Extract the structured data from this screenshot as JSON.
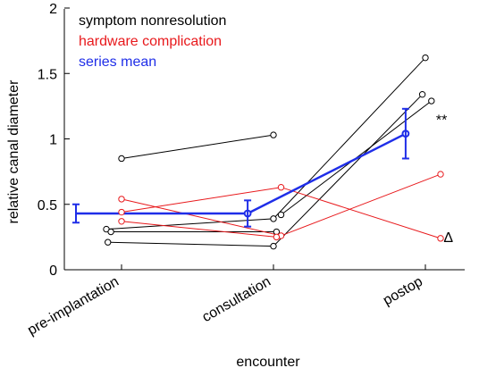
{
  "chart_data": {
    "type": "line",
    "xlabel": "encounter",
    "ylabel": "relative canal diameter",
    "categories": [
      "pre-implantation",
      "consultation",
      "postop"
    ],
    "ylim": [
      0,
      2
    ],
    "yticks": [
      0,
      0.5,
      1,
      1.5,
      2
    ],
    "ytick_labels": [
      "0",
      "0.5",
      "1",
      "1.5",
      "2"
    ],
    "grid": false,
    "legend_position": "top-left",
    "legend": [
      {
        "label": "symptom nonresolution",
        "color": "#000000"
      },
      {
        "label": "hardware complication",
        "color": "#e8191c"
      },
      {
        "label": "series mean",
        "color": "#1f2ee8"
      }
    ],
    "series": [
      {
        "group": "symptom nonresolution",
        "color": "#000000",
        "points": [
          [
            0,
            0.85
          ],
          [
            1,
            1.03
          ]
        ]
      },
      {
        "group": "symptom nonresolution",
        "color": "#000000",
        "points": [
          [
            -0.1,
            0.31
          ],
          [
            1,
            0.39
          ],
          [
            2,
            1.62
          ]
        ]
      },
      {
        "group": "symptom nonresolution",
        "color": "#000000",
        "points": [
          [
            -0.07,
            0.29
          ],
          [
            1.02,
            0.29
          ]
        ]
      },
      {
        "group": "symptom nonresolution",
        "color": "#000000",
        "points": [
          [
            -0.09,
            0.21
          ],
          [
            1,
            0.18
          ],
          [
            1.98,
            1.34
          ]
        ]
      },
      {
        "group": "symptom nonresolution",
        "color": "#000000",
        "points": [
          [
            1.05,
            0.42
          ],
          [
            2.04,
            1.29
          ]
        ]
      },
      {
        "group": "hardware complication",
        "color": "#e8191c",
        "points": [
          [
            0,
            0.54
          ],
          [
            1.05,
            0.26
          ],
          [
            2.1,
            0.73
          ]
        ]
      },
      {
        "group": "hardware complication",
        "color": "#e8191c",
        "points": [
          [
            0,
            0.44
          ],
          [
            1.05,
            0.63
          ],
          [
            2.1,
            0.24
          ]
        ]
      },
      {
        "group": "hardware complication",
        "color": "#e8191c",
        "points": [
          [
            0,
            0.37
          ],
          [
            1.02,
            0.25
          ]
        ]
      },
      {
        "group": "series mean",
        "color": "#1f2ee8",
        "mean": true,
        "points": [
          [
            -0.3,
            0.43
          ],
          [
            0.83,
            0.43
          ],
          [
            1.87,
            1.04
          ]
        ],
        "err": [
          0.07,
          0.1,
          0.19
        ]
      }
    ],
    "annotations": [
      {
        "text": "**",
        "x": 2.07,
        "y": 1.11
      },
      {
        "text": "Δ",
        "x": 2.12,
        "y": 0.21
      }
    ]
  }
}
